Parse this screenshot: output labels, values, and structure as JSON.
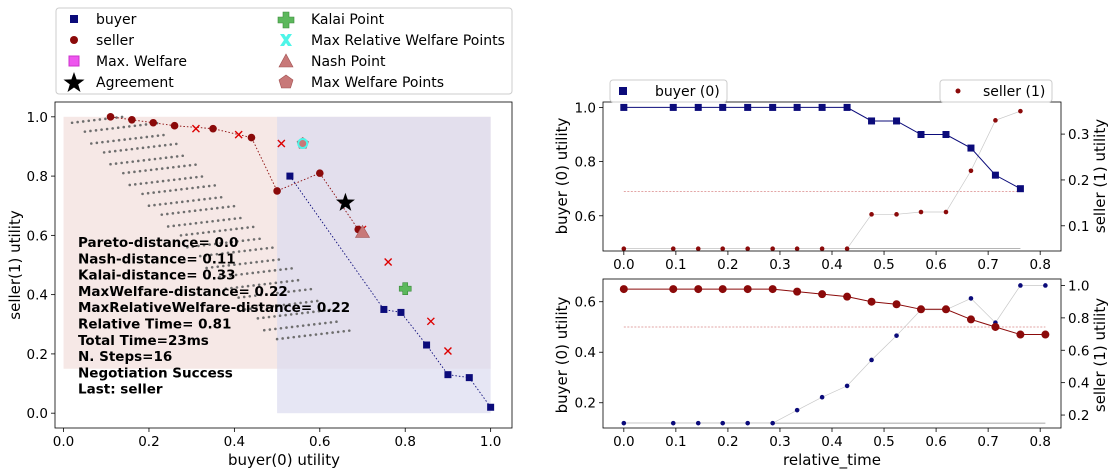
{
  "colors": {
    "buyer": "#0b0b7a",
    "seller": "#8b0a0a",
    "offer_dots": "#6e6e6e",
    "max_welfare": "#ee55ee",
    "kalai": "#5cb85c",
    "max_relative_welfare": "#4ef5e8",
    "nash": "#c87878",
    "max_welfare_points": "#c87878",
    "rejected_x": "#dd0000",
    "buyer_region": "#dcdcf0",
    "seller_region": "#f3e0de"
  },
  "legend": [
    {
      "label": "buyer",
      "marker": "square"
    },
    {
      "label": "seller",
      "marker": "circle"
    },
    {
      "label": "Max. Welfare",
      "marker": "square-magenta"
    },
    {
      "label": "Agreement",
      "marker": "star"
    },
    {
      "label": "Kalai Point",
      "marker": "plus"
    },
    {
      "label": "Max Relative Welfare Points",
      "marker": "x-cyan"
    },
    {
      "label": "Nash Point",
      "marker": "triangle"
    },
    {
      "label": "Max Welfare Points",
      "marker": "pentagon"
    }
  ],
  "chart_data": [
    {
      "type": "scatter",
      "xlabel": "buyer(0) utility",
      "ylabel": "seller(1) utility",
      "xlim": [
        -0.02,
        1.05
      ],
      "ylim": [
        -0.05,
        1.05
      ],
      "xticks": [
        "0.0",
        "0.2",
        "0.4",
        "0.6",
        "0.8",
        "1.0"
      ],
      "xtick_values": [
        0,
        0.2,
        0.4,
        0.6,
        0.8,
        1.0
      ],
      "yticks": [
        "0.0",
        "0.2",
        "0.4",
        "0.6",
        "0.8",
        "1.0"
      ],
      "ytick_values": [
        0,
        0.2,
        0.4,
        0.6,
        0.8,
        1.0
      ],
      "buyer_offers": [
        [
          0.53,
          0.8
        ],
        [
          0.75,
          0.35
        ],
        [
          0.79,
          0.34
        ],
        [
          0.85,
          0.23
        ],
        [
          0.9,
          0.13
        ],
        [
          0.95,
          0.12
        ],
        [
          1.0,
          0.02
        ]
      ],
      "seller_offers": [
        [
          0.11,
          1.0
        ],
        [
          0.16,
          0.99
        ],
        [
          0.21,
          0.98
        ],
        [
          0.26,
          0.97
        ],
        [
          0.35,
          0.96
        ],
        [
          0.44,
          0.93
        ],
        [
          0.5,
          0.75
        ],
        [
          0.6,
          0.81
        ],
        [
          0.69,
          0.62
        ]
      ],
      "rejected_offers": [
        [
          0.31,
          0.96
        ],
        [
          0.41,
          0.94
        ],
        [
          0.51,
          0.91
        ],
        [
          0.7,
          0.62
        ],
        [
          0.76,
          0.51
        ],
        [
          0.86,
          0.31
        ],
        [
          0.9,
          0.21
        ]
      ],
      "agreement": [
        0.66,
        0.71
      ],
      "kalai_point": [
        0.8,
        0.42
      ],
      "nash_point": [
        0.7,
        0.61
      ],
      "max_welfare_points": [
        [
          0.56,
          0.91
        ]
      ],
      "max_relative_welfare_points": [
        [
          0.56,
          0.91
        ]
      ],
      "stats": [
        "Pareto-distance=  0.0",
        "Nash-distance= 0.11",
        "Kalai-distance= 0.33",
        "MaxWelfare-distance= 0.22",
        "MaxRelativeWelfare-distance= 0.22",
        "Relative Time= 0.81",
        "Total Time=23ms",
        "N. Steps=16",
        "Negotiation Success",
        "Last: seller"
      ]
    },
    {
      "type": "line",
      "xlabel": "",
      "ylabel_left": "buyer (0) utility",
      "ylabel_right": "seller (1) utility",
      "legend_left": "buyer (0)",
      "legend_right": "seller (1)",
      "xlim": [
        -0.04,
        0.84
      ],
      "ylim_left": [
        0.47,
        1.02
      ],
      "ylim_right": [
        0.045,
        0.37
      ],
      "xticks": [
        "0.0",
        "0.1",
        "0.2",
        "0.3",
        "0.4",
        "0.5",
        "0.6",
        "0.7",
        "0.8"
      ],
      "xtick_values": [
        0,
        0.1,
        0.2,
        0.3,
        0.4,
        0.5,
        0.6,
        0.7,
        0.8
      ],
      "yticks_left": [
        "0.6",
        "0.8",
        "1.0"
      ],
      "ytick_values_left": [
        0.6,
        0.8,
        1.0
      ],
      "yticks_right": [
        "0.1",
        "0.2",
        "0.3"
      ],
      "ytick_values_right": [
        0.1,
        0.2,
        0.3
      ],
      "buyer_series": {
        "x": [
          0.0,
          0.095,
          0.143,
          0.19,
          0.238,
          0.286,
          0.333,
          0.381,
          0.429,
          0.476,
          0.524,
          0.571,
          0.619,
          0.667,
          0.714,
          0.762
        ],
        "y": [
          1.0,
          1.0,
          1.0,
          1.0,
          1.0,
          1.0,
          1.0,
          1.0,
          1.0,
          0.95,
          0.95,
          0.9,
          0.9,
          0.85,
          0.75,
          0.7
        ]
      },
      "seller_series": {
        "x": [
          0.0,
          0.095,
          0.143,
          0.19,
          0.238,
          0.286,
          0.333,
          0.381,
          0.429,
          0.476,
          0.524,
          0.571,
          0.619,
          0.667,
          0.714,
          0.762
        ],
        "y": [
          0.05,
          0.05,
          0.05,
          0.05,
          0.05,
          0.05,
          0.05,
          0.05,
          0.05,
          0.125,
          0.125,
          0.13,
          0.13,
          0.22,
          0.33,
          0.35
        ]
      },
      "reference_left": 0.69,
      "reference_right": 0.05
    },
    {
      "type": "line",
      "xlabel": "relative_time",
      "ylabel_left": "buyer (0) utility",
      "ylabel_right": "seller (1) utility",
      "xlim": [
        -0.04,
        0.84
      ],
      "ylim_left": [
        0.1,
        0.69
      ],
      "ylim_right": [
        0.12,
        1.04
      ],
      "xticks": [
        "0.0",
        "0.1",
        "0.2",
        "0.3",
        "0.4",
        "0.5",
        "0.6",
        "0.7",
        "0.8"
      ],
      "xtick_values": [
        0,
        0.1,
        0.2,
        0.3,
        0.4,
        0.5,
        0.6,
        0.7,
        0.8
      ],
      "yticks_left": [
        "0.2",
        "0.4",
        "0.6"
      ],
      "ytick_values_left": [
        0.2,
        0.4,
        0.6
      ],
      "yticks_right": [
        "0.2",
        "0.4",
        "0.6",
        "0.8",
        "1.0"
      ],
      "ytick_values_right": [
        0.2,
        0.4,
        0.6,
        0.8,
        1.0
      ],
      "seller_series": {
        "x": [
          0.0,
          0.095,
          0.143,
          0.19,
          0.238,
          0.286,
          0.333,
          0.381,
          0.429,
          0.476,
          0.524,
          0.571,
          0.619,
          0.667,
          0.714,
          0.762,
          0.81
        ],
        "y": [
          0.65,
          0.65,
          0.65,
          0.65,
          0.65,
          0.65,
          0.64,
          0.63,
          0.62,
          0.6,
          0.59,
          0.57,
          0.57,
          0.53,
          0.5,
          0.47,
          0.47
        ]
      },
      "buyer_series": {
        "x": [
          0.0,
          0.095,
          0.143,
          0.19,
          0.238,
          0.286,
          0.333,
          0.381,
          0.429,
          0.476,
          0.524,
          0.571,
          0.619,
          0.667,
          0.714,
          0.762,
          0.81
        ],
        "y": [
          0.15,
          0.15,
          0.15,
          0.15,
          0.15,
          0.15,
          0.23,
          0.31,
          0.38,
          0.54,
          0.69,
          0.85,
          0.85,
          0.92,
          0.77,
          1.0,
          1.0
        ]
      },
      "reference_left": 0.5,
      "reference_right": 0.15
    }
  ]
}
